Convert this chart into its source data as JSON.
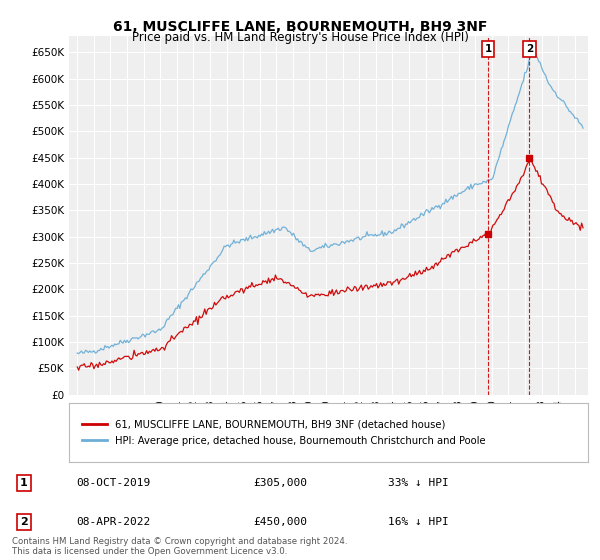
{
  "title": "61, MUSCLIFFE LANE, BOURNEMOUTH, BH9 3NF",
  "subtitle": "Price paid vs. HM Land Registry's House Price Index (HPI)",
  "legend_line1": "61, MUSCLIFFE LANE, BOURNEMOUTH, BH9 3NF (detached house)",
  "legend_line2": "HPI: Average price, detached house, Bournemouth Christchurch and Poole",
  "sale1_label": "1",
  "sale1_date": "08-OCT-2019",
  "sale1_price": "£305,000",
  "sale1_pct": "33% ↓ HPI",
  "sale2_label": "2",
  "sale2_date": "08-APR-2022",
  "sale2_price": "£450,000",
  "sale2_pct": "16% ↓ HPI",
  "footer": "Contains HM Land Registry data © Crown copyright and database right 2024.\nThis data is licensed under the Open Government Licence v3.0.",
  "hpi_color": "#6baed6",
  "price_color": "#cc0000",
  "sale_vline_color": "#cc0000",
  "background_chart": "#efefef",
  "ylim": [
    0,
    680000
  ],
  "yticks": [
    0,
    50000,
    100000,
    150000,
    200000,
    250000,
    300000,
    350000,
    400000,
    450000,
    500000,
    550000,
    600000,
    650000
  ],
  "sale1_x": 2019.78,
  "sale1_y": 305000,
  "sale2_x": 2022.27,
  "sale2_y": 450000,
  "xmin": 1994.5,
  "xmax": 2025.8
}
